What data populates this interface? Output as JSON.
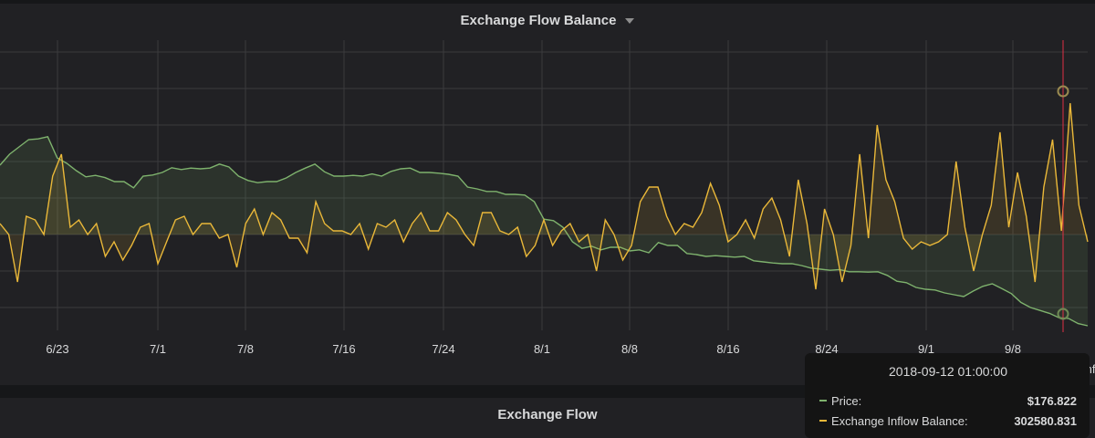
{
  "panel": {
    "title": "Exchange Flow Balance",
    "legend_peek": "Inflow"
  },
  "panel2": {
    "title": "Exchange Flow"
  },
  "tooltip": {
    "time": "2018-09-12 01:00:00",
    "rows": [
      {
        "label": "Price:",
        "value": "$176.822",
        "color": "#7eb26d"
      },
      {
        "label": "Exchange Inflow Balance:",
        "value": "302580.831",
        "color": "#eab839"
      }
    ]
  },
  "colors": {
    "price": "#7eb26d",
    "inflow": "#eab839",
    "cursor": "#e02f44",
    "grid": "#3a3a3d"
  },
  "chart_data": {
    "type": "line",
    "x_tick_labels": [
      "6/23",
      "7/1",
      "7/8",
      "7/16",
      "7/24",
      "8/1",
      "8/8",
      "8/16",
      "8/24",
      "9/1",
      "9/8"
    ],
    "cursor_time": "2018-09-12 01:00:00",
    "series": [
      {
        "name": "Price",
        "color": "#7eb26d",
        "fill": true,
        "values": [
          1.9,
          2.2,
          2.4,
          2.6,
          2.62,
          2.68,
          2.1,
          1.95,
          1.75,
          1.58,
          1.62,
          1.56,
          1.45,
          1.45,
          1.28,
          1.6,
          1.63,
          1.7,
          1.83,
          1.78,
          1.82,
          1.8,
          1.82,
          1.93,
          1.85,
          1.6,
          1.48,
          1.42,
          1.45,
          1.45,
          1.55,
          1.7,
          1.82,
          1.93,
          1.72,
          1.6,
          1.6,
          1.62,
          1.6,
          1.66,
          1.6,
          1.73,
          1.8,
          1.82,
          1.7,
          1.7,
          1.68,
          1.65,
          1.6,
          1.3,
          1.25,
          1.18,
          1.18,
          1.1,
          1.1,
          1.08,
          0.9,
          0.42,
          0.38,
          0.2,
          -0.2,
          -0.38,
          -0.32,
          -0.42,
          -0.35,
          -0.35,
          -0.45,
          -0.42,
          -0.5,
          -0.22,
          -0.3,
          -0.3,
          -0.52,
          -0.55,
          -0.6,
          -0.58,
          -0.6,
          -0.62,
          -0.6,
          -0.72,
          -0.75,
          -0.78,
          -0.8,
          -0.8,
          -0.85,
          -0.92,
          -0.95,
          -0.98,
          -0.96,
          -1.02,
          -1.02,
          -1.03,
          -1.02,
          -1.12,
          -1.28,
          -1.32,
          -1.45,
          -1.5,
          -1.52,
          -1.6,
          -1.65,
          -1.7,
          -1.55,
          -1.42,
          -1.35,
          -1.48,
          -1.62,
          -1.86,
          -2.0,
          -2.08,
          -2.16,
          -2.28,
          -2.3,
          -2.44,
          -2.5
        ]
      },
      {
        "name": "Exchange Inflow Balance",
        "color": "#eab839",
        "fill": true,
        "values": [
          0.3,
          0.0,
          -1.3,
          0.5,
          0.4,
          0.0,
          1.6,
          2.2,
          0.2,
          0.4,
          0.0,
          0.3,
          -0.6,
          -0.2,
          -0.7,
          -0.3,
          0.2,
          0.3,
          -0.8,
          -0.2,
          0.4,
          0.5,
          0.0,
          0.3,
          0.3,
          -0.1,
          0.0,
          -0.9,
          0.3,
          0.7,
          0.0,
          0.6,
          0.4,
          -0.1,
          -0.1,
          -0.5,
          0.9,
          0.3,
          0.1,
          0.1,
          0.0,
          0.3,
          -0.4,
          0.3,
          0.2,
          0.4,
          -0.2,
          0.3,
          0.6,
          0.1,
          0.1,
          0.6,
          0.4,
          0.0,
          -0.3,
          0.6,
          0.6,
          0.1,
          0.0,
          0.2,
          -0.6,
          -0.3,
          0.4,
          -0.3,
          0.1,
          0.3,
          -0.2,
          0.0,
          -1.0,
          0.4,
          0.0,
          -0.7,
          -0.3,
          0.9,
          1.3,
          1.3,
          0.5,
          0.0,
          0.3,
          0.2,
          0.6,
          1.4,
          0.8,
          -0.2,
          0.0,
          0.4,
          -0.1,
          0.7,
          1.0,
          0.4,
          -0.6,
          1.5,
          0.3,
          -1.5,
          0.7,
          0.0,
          -1.3,
          -0.3,
          2.2,
          -0.1,
          3.0,
          1.5,
          0.9,
          -0.1,
          -0.4,
          -0.2,
          -0.3,
          -0.2,
          0.0,
          2.0,
          0.2,
          -1.0,
          0.0,
          0.8,
          2.8,
          0.2,
          1.7,
          0.5,
          -1.3,
          1.3,
          2.6,
          0.1,
          3.6,
          0.8,
          -0.2
        ]
      }
    ],
    "grid": true
  }
}
